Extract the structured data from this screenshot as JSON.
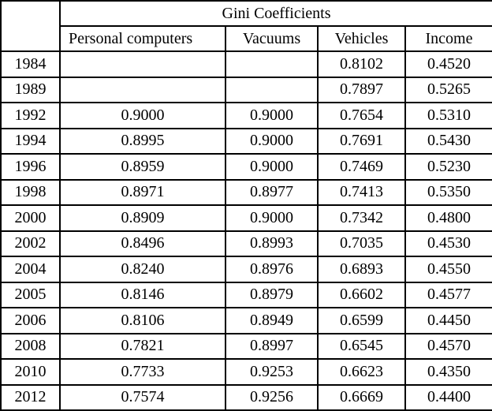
{
  "table": {
    "title": "Gini Coefficients",
    "corner": "",
    "columns": [
      "Personal computers",
      "Vacuums",
      "Vehicles",
      "Income"
    ],
    "rows": [
      {
        "year": "1984",
        "values": [
          "",
          "",
          "0.8102",
          "0.4520"
        ]
      },
      {
        "year": "1989",
        "values": [
          "",
          "",
          "0.7897",
          "0.5265"
        ]
      },
      {
        "year": "1992",
        "values": [
          "0.9000",
          "0.9000",
          "0.7654",
          "0.5310"
        ]
      },
      {
        "year": "1994",
        "values": [
          "0.8995",
          "0.9000",
          "0.7691",
          "0.5430"
        ]
      },
      {
        "year": "1996",
        "values": [
          "0.8959",
          "0.9000",
          "0.7469",
          "0.5230"
        ]
      },
      {
        "year": "1998",
        "values": [
          "0.8971",
          "0.8977",
          "0.7413",
          "0.5350"
        ]
      },
      {
        "year": "2000",
        "values": [
          "0.8909",
          "0.9000",
          "0.7342",
          "0.4800"
        ]
      },
      {
        "year": "2002",
        "values": [
          "0.8496",
          "0.8993",
          "0.7035",
          "0.4530"
        ]
      },
      {
        "year": "2004",
        "values": [
          "0.8240",
          "0.8976",
          "0.6893",
          "0.4550"
        ]
      },
      {
        "year": "2005",
        "values": [
          "0.8146",
          "0.8979",
          "0.6602",
          "0.4577"
        ]
      },
      {
        "year": "2006",
        "values": [
          "0.8106",
          "0.8949",
          "0.6599",
          "0.4450"
        ]
      },
      {
        "year": "2008",
        "values": [
          "0.7821",
          "0.8997",
          "0.6545",
          "0.4570"
        ]
      },
      {
        "year": "2010",
        "values": [
          "0.7733",
          "0.9253",
          "0.6623",
          "0.4350"
        ]
      },
      {
        "year": "2012",
        "values": [
          "0.7574",
          "0.9256",
          "0.6669",
          "0.4400"
        ]
      }
    ],
    "colors": {
      "border": "#000000",
      "text": "#000000",
      "background": "#ffffff"
    }
  }
}
